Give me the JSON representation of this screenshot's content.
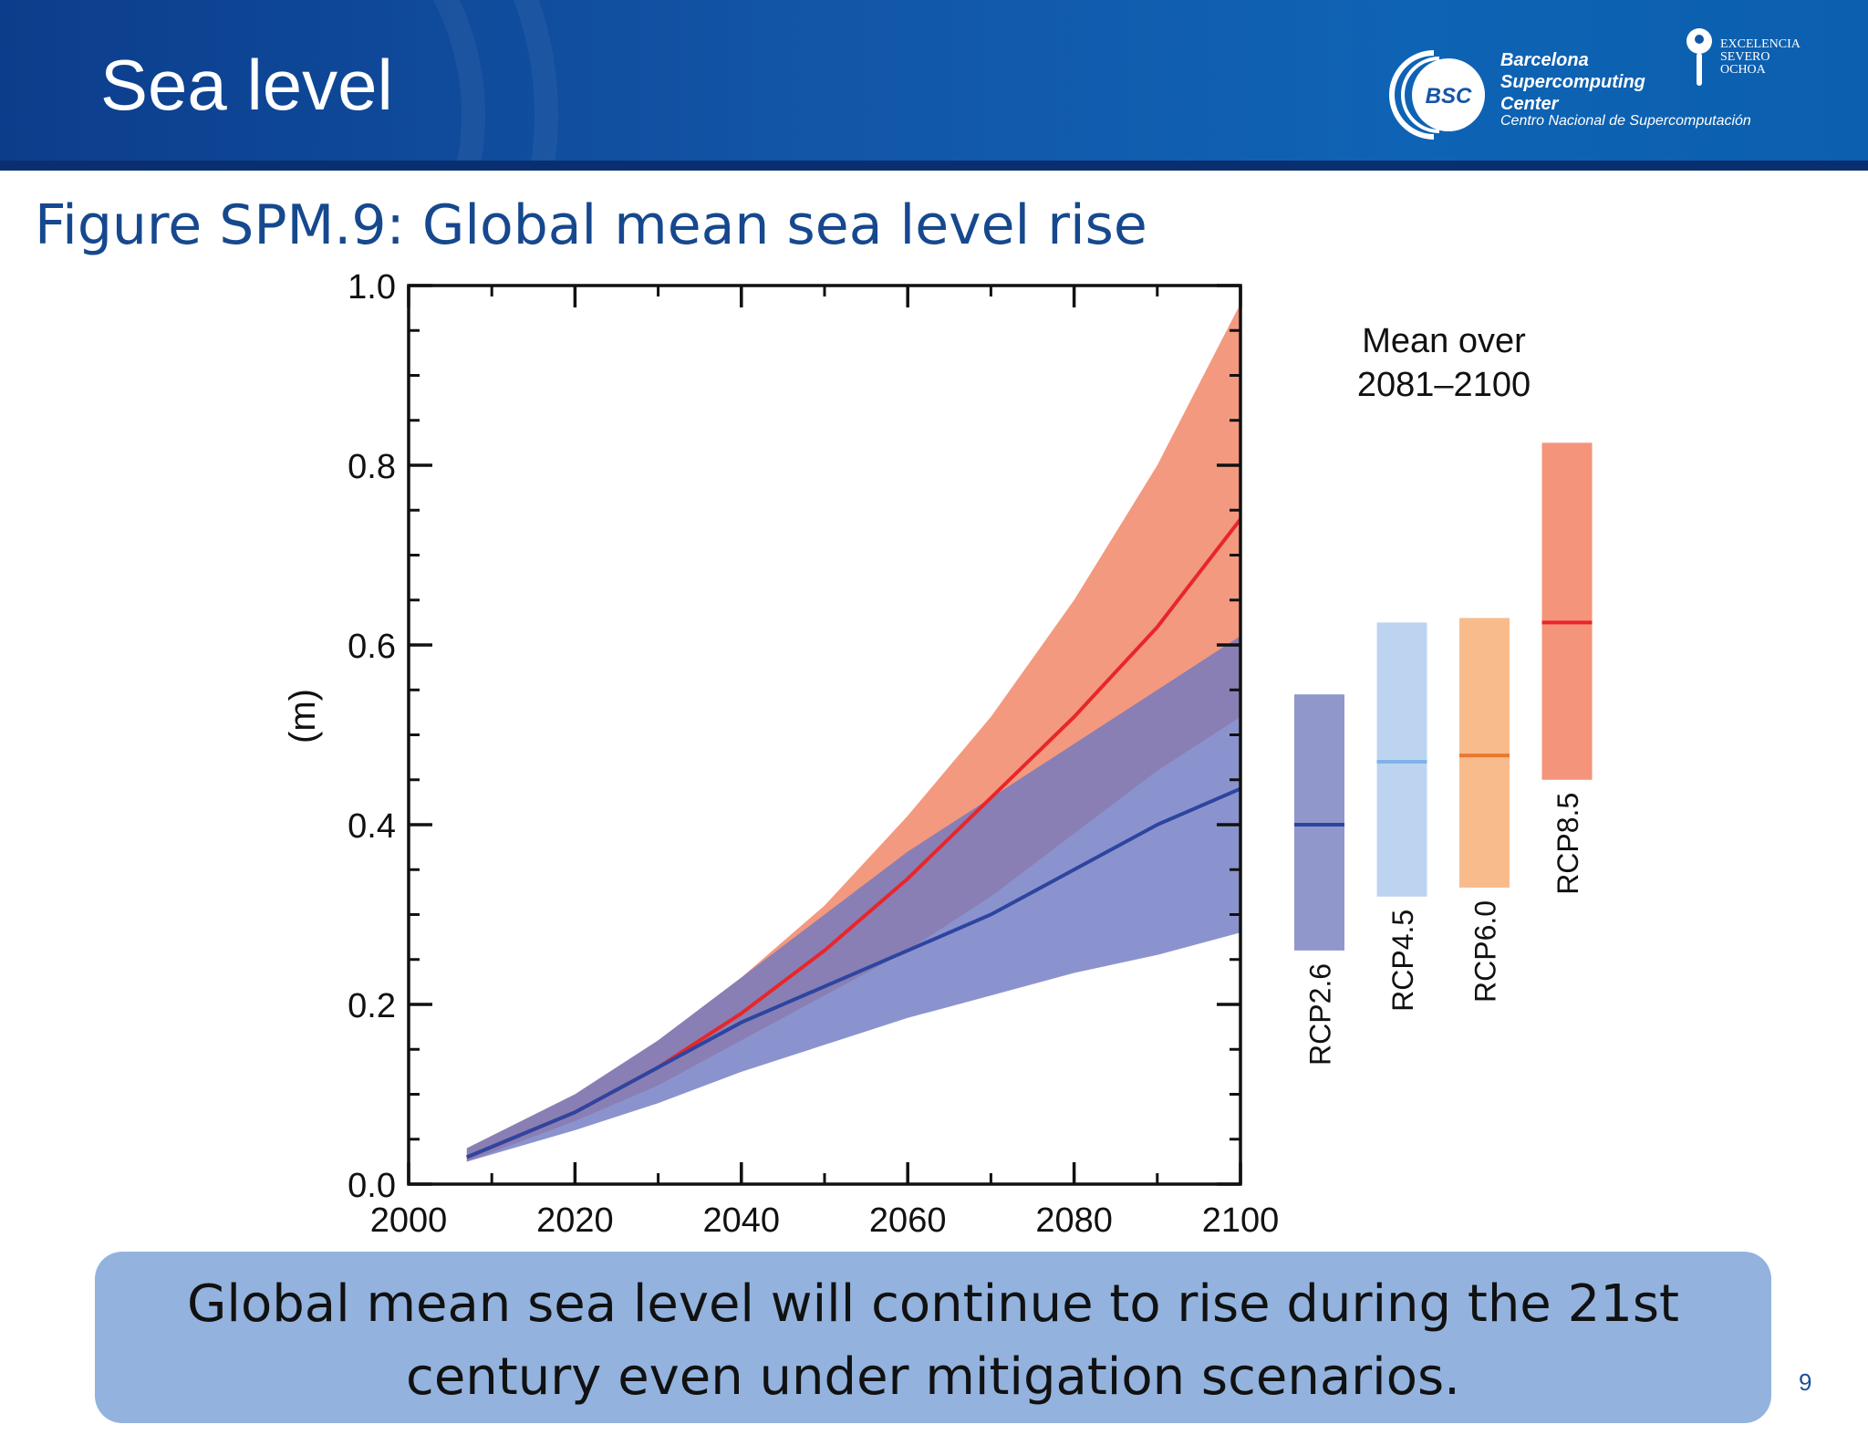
{
  "slide": {
    "title": "Sea level",
    "page_number": "9",
    "figure_title": "Figure SPM.9: Global mean sea level rise",
    "callout_line1": "Global mean sea level will continue to rise during the 21st",
    "callout_line2": "century even under mitigation scenarios.",
    "colors": {
      "header": "#1356a8",
      "title_blue": "#16488e",
      "callout": "#93b3de"
    }
  },
  "logo": {
    "mark": "BSC",
    "line1": "Barcelona",
    "line2": "Supercomputing",
    "line3": "Center",
    "subtitle": "Centro Nacional de Supercomputación",
    "badge_line1": "EXCELENCIA",
    "badge_line2": "SEVERO",
    "badge_line3": "OCHOA",
    "badge_icon": "severo-ochoa-keyhole-icon"
  },
  "chart_data": {
    "type": "area",
    "ylabel": "(m)",
    "xlabel": "",
    "xlim": [
      2000,
      2100
    ],
    "ylim": [
      0,
      1.0
    ],
    "x_ticks": [
      2000,
      2020,
      2040,
      2060,
      2080,
      2100
    ],
    "y_ticks": [
      0.0,
      0.2,
      0.4,
      0.6,
      0.8,
      1.0
    ],
    "y_tick_labels": [
      "0.0",
      "0.2",
      "0.4",
      "0.6",
      "0.8",
      "1.0"
    ],
    "x_minor_step": 10,
    "y_minor_step": 0.05,
    "grid": false,
    "series": [
      {
        "color": "#f0805f",
        "line_color": "#e8262a",
        "x": [
          2007,
          2020,
          2030,
          2040,
          2050,
          2060,
          2070,
          2080,
          2090,
          2100
        ],
        "mean": [
          0.03,
          0.08,
          0.13,
          0.19,
          0.26,
          0.34,
          0.43,
          0.52,
          0.62,
          0.74
        ],
        "lower": [
          0.025,
          0.07,
          0.11,
          0.16,
          0.21,
          0.26,
          0.32,
          0.39,
          0.46,
          0.52
        ],
        "upper": [
          0.04,
          0.1,
          0.16,
          0.23,
          0.31,
          0.41,
          0.52,
          0.65,
          0.8,
          0.98
        ]
      },
      {
        "color": "#6e78c2",
        "line_color": "#2d45a0",
        "x": [
          2007,
          2020,
          2030,
          2040,
          2050,
          2060,
          2070,
          2080,
          2090,
          2100
        ],
        "mean": [
          0.03,
          0.08,
          0.13,
          0.18,
          0.22,
          0.26,
          0.3,
          0.35,
          0.4,
          0.44
        ],
        "lower": [
          0.025,
          0.06,
          0.09,
          0.125,
          0.155,
          0.185,
          0.21,
          0.235,
          0.255,
          0.28
        ],
        "upper": [
          0.04,
          0.1,
          0.16,
          0.23,
          0.3,
          0.37,
          0.43,
          0.49,
          0.55,
          0.61
        ]
      }
    ],
    "side_title_line1": "Mean over",
    "side_title_line2": "2081–2100",
    "side_bars": [
      {
        "name": "RCP2.6",
        "low": 0.26,
        "high": 0.545,
        "mean": 0.4,
        "fill": "#8f97cb",
        "line": "#2d45a0"
      },
      {
        "name": "RCP4.5",
        "low": 0.32,
        "high": 0.625,
        "mean": 0.47,
        "fill": "#bcd4f0",
        "line": "#7fb3e8"
      },
      {
        "name": "RCP6.0",
        "low": 0.33,
        "high": 0.63,
        "mean": 0.477,
        "fill": "#f8bb8c",
        "line": "#e8792f"
      },
      {
        "name": "RCP8.5",
        "low": 0.45,
        "high": 0.825,
        "mean": 0.625,
        "fill": "#f4947b",
        "line": "#e8262a"
      }
    ]
  }
}
